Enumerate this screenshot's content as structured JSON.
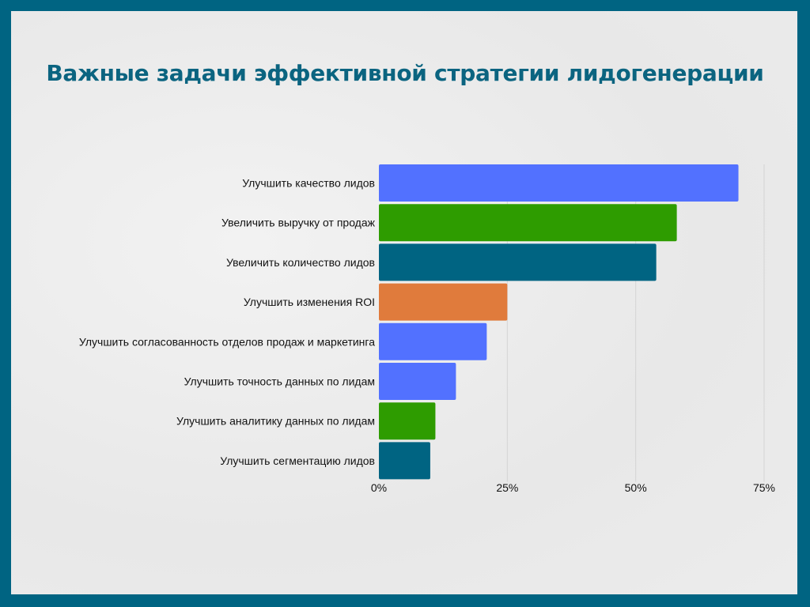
{
  "title": "Важные задачи эффективной стратегии лидогенерации",
  "chart_data": {
    "type": "bar",
    "orientation": "horizontal",
    "title": "Важные задачи эффективной стратегии лидогенерации",
    "categories": [
      "Улучшить качество лидов",
      "Увеличить выручку от продаж",
      "Увеличить количество лидов",
      "Улучшить изменения ROI",
      "Улучшить согласованность отделов продаж и маркетинга",
      "Улучшить точность данных по лидам",
      "Улучшить аналитику данных по лидам",
      "Улучшить сегментацию лидов"
    ],
    "values": [
      70,
      58,
      54,
      25,
      21,
      15,
      11,
      10
    ],
    "colors": [
      "#5271ff",
      "#2e9c00",
      "#006482",
      "#e07b3c",
      "#5271ff",
      "#5271ff",
      "#2e9c00",
      "#006482"
    ],
    "xlim": [
      0,
      75
    ],
    "xticks": [
      0,
      25,
      50,
      75
    ],
    "xtick_labels": [
      "0%",
      "25%",
      "50%",
      "75%"
    ],
    "xlabel": "",
    "ylabel": "",
    "grid": true,
    "legend": "none"
  }
}
